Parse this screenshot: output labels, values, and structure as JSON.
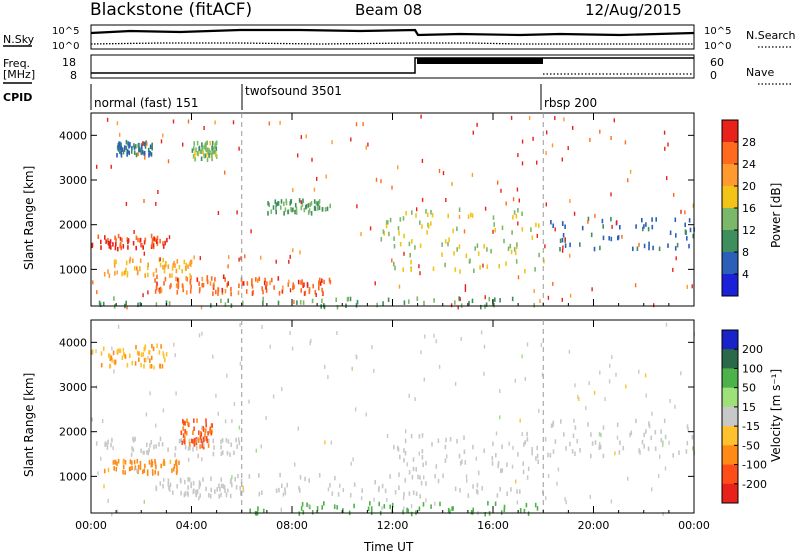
{
  "header": {
    "station": "Blackstone (fitACF)",
    "beam": "Beam 08",
    "date": "12/Aug/2015"
  },
  "noise_panel": {
    "left_label": "N.Sky",
    "right_label": "N.Search",
    "left_ticks": [
      "10^5",
      "10^0"
    ],
    "right_ticks": [
      "10^5",
      "10^0"
    ]
  },
  "freq_panel": {
    "left_label_line1": "Freq.",
    "left_label_line2": "[MHz]",
    "right_label": "Nave",
    "left_ticks": [
      "18",
      "8"
    ],
    "right_ticks": [
      "60",
      "0"
    ],
    "cpid_label": "CPID"
  },
  "cpid_segments": [
    {
      "label": "normal (fast) 151",
      "start_hour": 0
    },
    {
      "label": "twofsound 3501",
      "start_hour": 6
    },
    {
      "label": "rbsp 200",
      "start_hour": 18
    }
  ],
  "power_colorbar": {
    "label": "Power [dB]",
    "ticks": [
      "28",
      "24",
      "20",
      "16",
      "12",
      "8",
      "4"
    ],
    "colors": [
      "#e8211b",
      "#ff6a1e",
      "#ff9a2e",
      "#f2c418",
      "#7bb86a",
      "#3f8f5e",
      "#2b5fb8",
      "#1b20d9"
    ]
  },
  "velocity_colorbar": {
    "label": "Velocity [m s⁻¹]",
    "ticks": [
      "200",
      "100",
      "50",
      "15",
      "-15",
      "-50",
      "-100",
      "-200"
    ],
    "colors": [
      "#1a22c9",
      "#2a6a4a",
      "#4db24a",
      "#9ee07a",
      "#c8c8c8",
      "#ffc12e",
      "#ff8a16",
      "#ff4d1a",
      "#e8211b"
    ]
  },
  "chart_data": [
    {
      "type": "heatmap",
      "title": "",
      "xlabel": "",
      "ylabel": "Slant Range [km]",
      "xticks": [
        "00:00",
        "04:00",
        "08:00",
        "12:00",
        "16:00",
        "20:00",
        "00:00"
      ],
      "yticks": [
        "1000",
        "2000",
        "3000",
        "4000"
      ],
      "xlim": [
        0,
        24
      ],
      "ylim": [
        180,
        4500
      ],
      "colorbar_label": "Power [dB]",
      "scatter_regions": [
        {
          "t0": 0.0,
          "t1": 3.0,
          "r0": 1500,
          "r1": 1800,
          "value": 26
        },
        {
          "t0": 0.5,
          "t1": 4.0,
          "r0": 900,
          "r1": 1300,
          "value": 18
        },
        {
          "t0": 2.5,
          "t1": 5.5,
          "r0": 500,
          "r1": 900,
          "value": 24
        },
        {
          "t0": 5.5,
          "t1": 9.5,
          "r0": 500,
          "r1": 850,
          "value": 24
        },
        {
          "t0": 1.0,
          "t1": 2.5,
          "r0": 3600,
          "r1": 3900,
          "value": 6
        },
        {
          "t0": 4.0,
          "t1": 5.0,
          "r0": 3500,
          "r1": 3900,
          "value": 12
        },
        {
          "t0": 11.5,
          "t1": 18.0,
          "r0": 1000,
          "r1": 2400,
          "value": 14
        },
        {
          "t0": 7.0,
          "t1": 9.5,
          "r0": 2300,
          "r1": 2600,
          "value": 10
        },
        {
          "t0": 18.0,
          "t1": 24.0,
          "r0": 1500,
          "r1": 2200,
          "value": 5
        },
        {
          "t0": 0.0,
          "t1": 18.0,
          "r0": 200,
          "r1": 400,
          "value": 10
        }
      ]
    },
    {
      "type": "heatmap",
      "title": "",
      "xlabel": "Time UT",
      "ylabel": "Slant Range [km]",
      "xticks": [
        "00:00",
        "04:00",
        "08:00",
        "12:00",
        "16:00",
        "20:00",
        "00:00"
      ],
      "yticks": [
        "1000",
        "2000",
        "3000",
        "4000"
      ],
      "xlim": [
        0,
        24
      ],
      "ylim": [
        180,
        4500
      ],
      "colorbar_label": "Velocity [m s⁻¹]",
      "scatter_regions": [
        {
          "t0": 0.0,
          "t1": 6.0,
          "r0": 1500,
          "r1": 1900,
          "value": 0
        },
        {
          "t0": 0.5,
          "t1": 3.5,
          "r0": 1100,
          "r1": 1400,
          "value": -40
        },
        {
          "t0": 2.5,
          "t1": 6.0,
          "r0": 600,
          "r1": 1000,
          "value": 0
        },
        {
          "t0": 5.5,
          "t1": 18.0,
          "r0": 600,
          "r1": 1100,
          "value": 0
        },
        {
          "t0": 12.0,
          "t1": 18.0,
          "r0": 1100,
          "r1": 2000,
          "value": 0
        },
        {
          "t0": 3.5,
          "t1": 4.8,
          "r0": 1700,
          "r1": 2300,
          "value": -80
        },
        {
          "t0": 6.0,
          "t1": 18.0,
          "r0": 200,
          "r1": 450,
          "value": 45
        },
        {
          "t0": 18.0,
          "t1": 24.0,
          "r0": 1500,
          "r1": 2300,
          "value": 0
        },
        {
          "t0": 0.0,
          "t1": 3.0,
          "r0": 3500,
          "r1": 4000,
          "value": -30
        }
      ]
    }
  ]
}
